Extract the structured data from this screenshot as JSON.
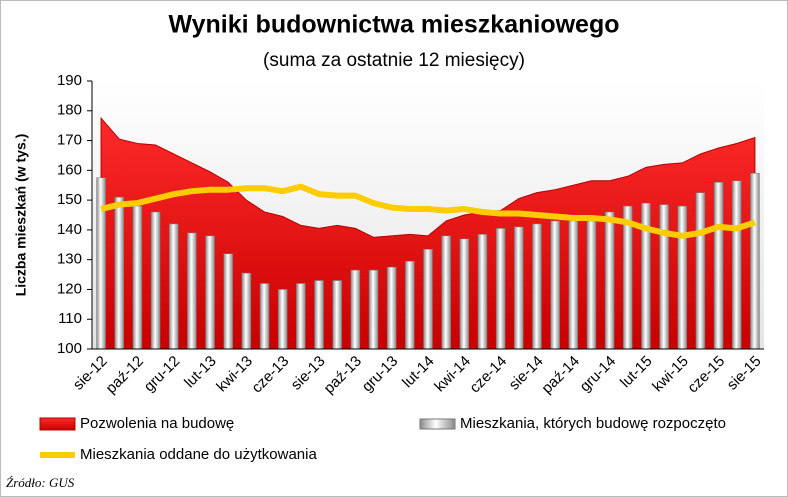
{
  "chart_data": {
    "type": "combo",
    "title": "Wyniki budownictwa mieszkaniowego",
    "subtitle": "(suma za ostatnie 12 miesięcy)",
    "y_label": "Liczba mieszkań (w tys.)",
    "source": "Źródło: GUS",
    "categories": [
      "sie-12",
      null,
      "paź-12",
      null,
      "gru-12",
      null,
      "lut-13",
      null,
      "kwi-13",
      null,
      "cze-13",
      null,
      "sie-13",
      null,
      "paź-13",
      null,
      "gru-13",
      null,
      "lut-14",
      null,
      "kwi-14",
      null,
      "cze-14",
      null,
      "sie-14",
      null,
      "paź-14",
      null,
      "gru-14",
      null,
      "lut-15",
      null,
      "kwi-15",
      null,
      "cze-15",
      null,
      "sie-15"
    ],
    "series": [
      {
        "name": "Pozwolenia na budowę",
        "type": "area",
        "color": "#e00000",
        "values": [
          177.5,
          170.5,
          169,
          168.5,
          165.5,
          162.5,
          159.5,
          156,
          150,
          146,
          144.5,
          141.5,
          140.5,
          141.5,
          140.5,
          137.5,
          138,
          138.5,
          138,
          143,
          145,
          146,
          146.5,
          150.5,
          152.5,
          153.5,
          155,
          156.5,
          156.5,
          158,
          161,
          162,
          162.5,
          165.5,
          167.5,
          169,
          171
        ]
      },
      {
        "name": "Mieszkania, których budowę rozpoczęto",
        "type": "bar",
        "color": "#c0c0c0",
        "values": [
          157.5,
          151,
          148,
          146,
          142,
          139,
          138,
          132,
          125.5,
          122,
          120,
          122,
          123,
          123,
          126.5,
          126.5,
          127.5,
          129.5,
          133.5,
          138,
          137,
          138.5,
          140.5,
          141,
          142,
          143,
          143,
          143,
          146,
          148,
          149,
          148.5,
          148,
          152.5,
          156,
          156.5,
          159
        ]
      },
      {
        "name": "Mieszkania oddane do użytkowania",
        "type": "line",
        "color": "#ffcc00",
        "values": [
          147,
          148.5,
          149,
          150.5,
          152,
          153,
          153.5,
          153.5,
          154,
          154,
          153,
          154.5,
          152,
          151.5,
          151.5,
          149,
          147.5,
          147,
          147,
          146.5,
          147,
          146,
          145.5,
          145.5,
          145,
          144.5,
          144,
          144,
          143.5,
          142.5,
          140.5,
          139,
          138,
          139,
          141,
          140.5,
          142.5
        ]
      }
    ],
    "ylim": [
      100,
      190
    ],
    "yticks": [
      100,
      110,
      120,
      130,
      140,
      150,
      160,
      170,
      180,
      190
    ],
    "grid": false
  }
}
